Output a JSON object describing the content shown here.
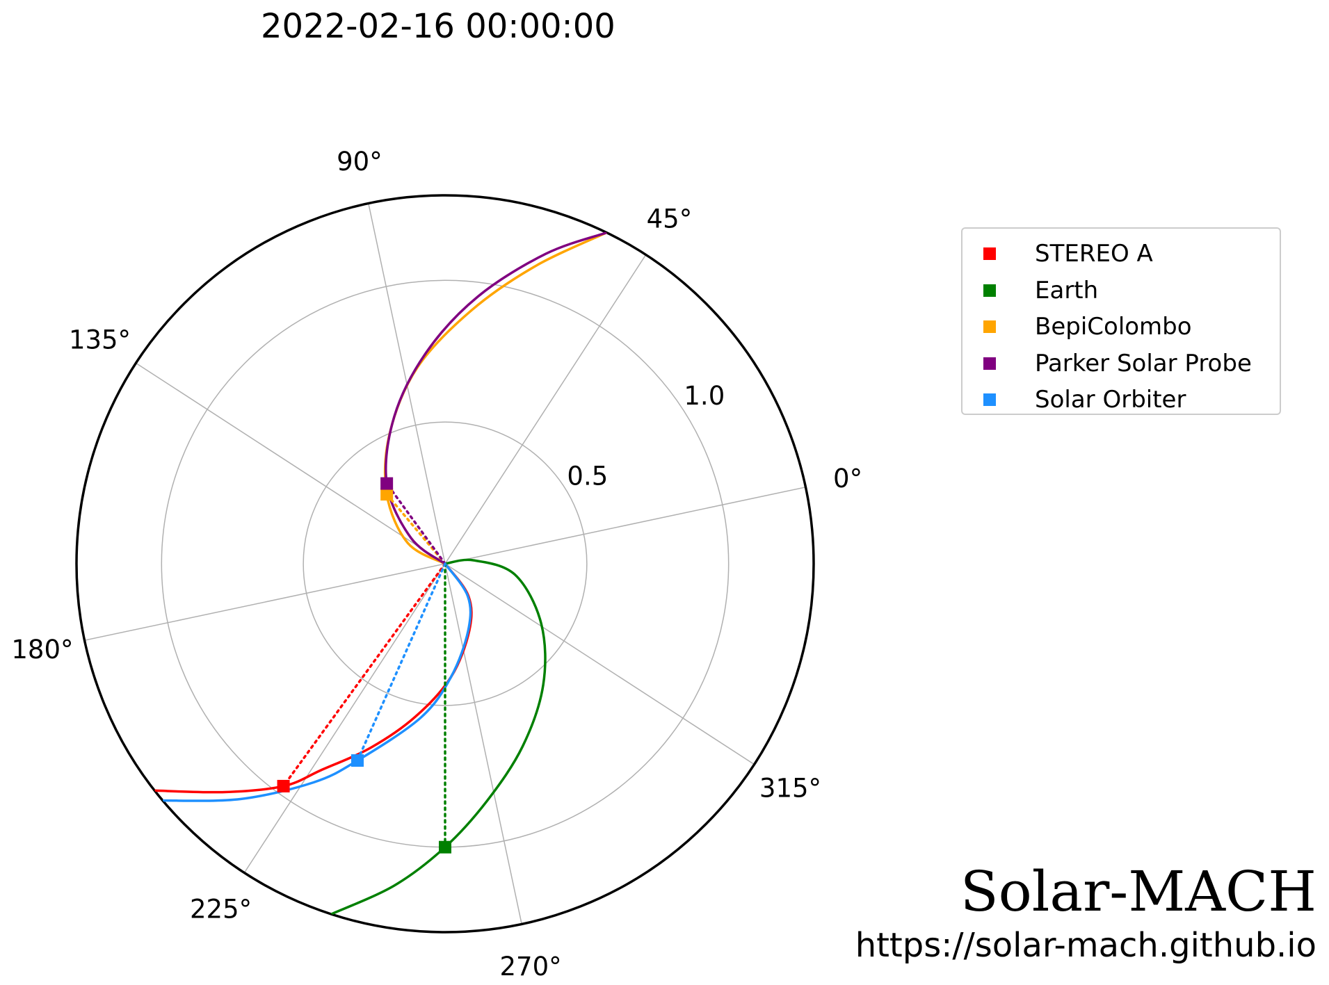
{
  "title": "2022-02-16 00:00:00",
  "brand": "Solar-MACH",
  "url": "https://solar-mach.github.io",
  "chart_data": {
    "type": "polar",
    "title": "2022-02-16 00:00:00",
    "rlim": [
      0,
      1.3
    ],
    "r_ticks": [
      "0.5",
      "1.0"
    ],
    "r_tick_values": [
      0.5,
      1.0
    ],
    "theta_offset_deg": 12,
    "theta_ticks": [
      "0°",
      "45°",
      "90°",
      "135°",
      "180°",
      "225°",
      "270°",
      "315°"
    ],
    "theta_tick_values_deg": [
      0,
      45,
      90,
      135,
      180,
      225,
      270,
      315
    ],
    "grid": true,
    "legend_position": "top-right",
    "series": [
      {
        "name": "STEREO A",
        "color": "#ff0000",
        "r": 0.97,
        "lon_deg": 222,
        "spiral_r": [
          0.0,
          0.14,
          0.25,
          0.4,
          0.55,
          0.7,
          0.85,
          0.97,
          1.12,
          1.3
        ],
        "spiral_lon_deg": [
          290,
          294,
          278,
          261,
          247,
          236,
          227,
          222,
          214,
          206
        ]
      },
      {
        "name": "Earth",
        "color": "#008000",
        "r": 1.0,
        "lon_deg": 258,
        "spiral_r": [
          0.0,
          0.1,
          0.25,
          0.4,
          0.55,
          0.7,
          0.85,
          1.0,
          1.15,
          1.3
        ],
        "spiral_lon_deg": [
          320,
          355,
          339,
          316,
          297,
          281,
          268,
          258,
          249,
          240
        ]
      },
      {
        "name": "BepiColombo",
        "color": "#ffa500",
        "r": 0.32,
        "lon_deg": 118,
        "spiral_r": [
          0.0,
          0.15,
          0.32,
          0.5,
          0.7,
          0.9,
          1.1,
          1.3
        ],
        "spiral_lon_deg": [
          195,
          139,
          118,
          101,
          86,
          72,
          61,
          52
        ]
      },
      {
        "name": "Parker Solar Probe",
        "color": "#800080",
        "r": 0.35,
        "lon_deg": 114,
        "spiral_r": [
          0.0,
          0.15,
          0.35,
          0.55,
          0.75,
          0.95,
          1.15,
          1.3
        ],
        "spiral_lon_deg": [
          190,
          131,
          114,
          97,
          83,
          71,
          60,
          52
        ]
      },
      {
        "name": "Solar Orbiter",
        "color": "#1e90ff",
        "r": 0.76,
        "lon_deg": 234,
        "spiral_r": [
          0.0,
          0.14,
          0.25,
          0.4,
          0.55,
          0.76,
          0.9,
          1.1,
          1.3
        ],
        "spiral_lon_deg": [
          290,
          293,
          277,
          261,
          249,
          234,
          227,
          217,
          208
        ]
      }
    ]
  }
}
